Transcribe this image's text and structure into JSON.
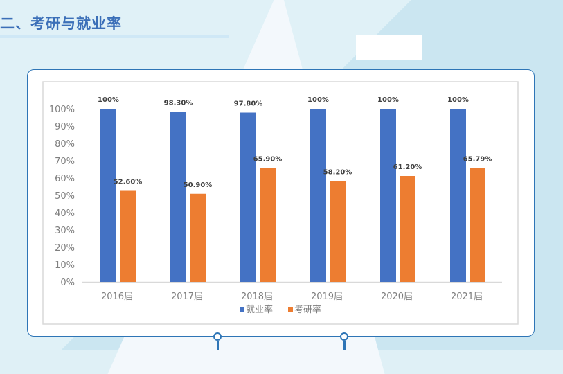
{
  "slide": {
    "title": "二、考研与就业率"
  },
  "chart_data": {
    "type": "bar",
    "categories": [
      "2016届",
      "2017届",
      "2018届",
      "2019届",
      "2020届",
      "2021届"
    ],
    "series": [
      {
        "name": "就业率",
        "color": "#4472c4",
        "values": [
          100,
          98.3,
          97.8,
          100,
          100,
          100
        ],
        "labels": [
          "100%",
          "98.30%",
          "97.80%",
          "100%",
          "100%",
          "100%"
        ]
      },
      {
        "name": "考研率",
        "color": "#ed7d31",
        "values": [
          52.6,
          50.9,
          65.9,
          58.2,
          61.2,
          65.79
        ],
        "labels": [
          "52.60%",
          "50.90%",
          "65.90%",
          "58.20%",
          "61.20%",
          "65.79%"
        ]
      }
    ],
    "ylim": [
      0,
      100
    ],
    "yticks": [
      "0%",
      "10%",
      "20%",
      "30%",
      "40%",
      "50%",
      "60%",
      "70%",
      "80%",
      "90%",
      "100%"
    ],
    "grid": false,
    "legend": "bottom"
  }
}
